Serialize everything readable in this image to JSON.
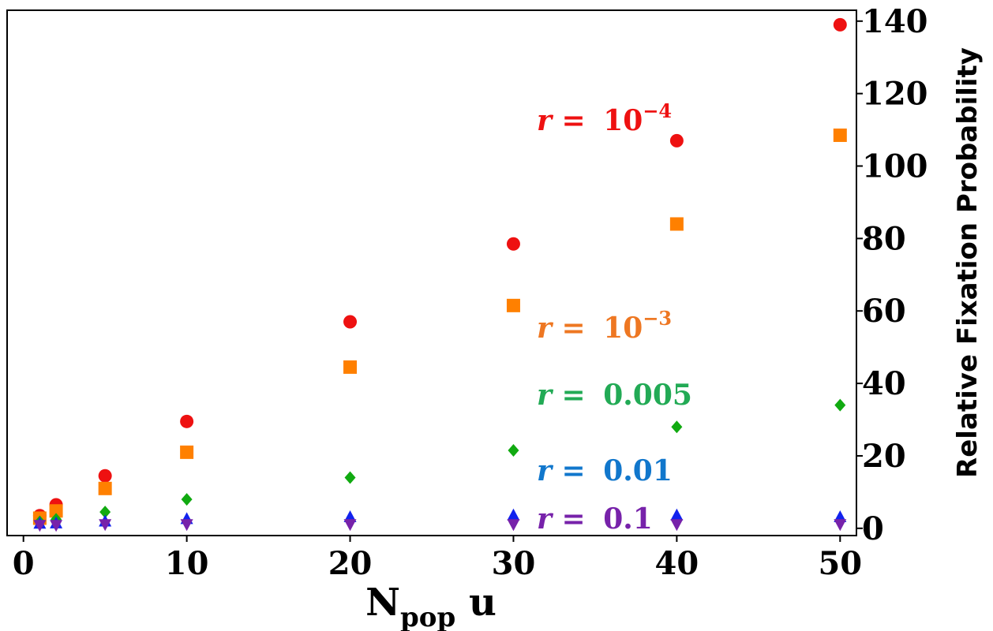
{
  "chart_data": {
    "type": "scatter",
    "xlabel": "N",
    "xlabel_sub": "pop",
    "xlabel_suffix": " u",
    "ylabel": "Relative Fixation Probability",
    "yaxis_side": "right",
    "xlim": [
      -1,
      51
    ],
    "ylim": [
      -2,
      143
    ],
    "xticks": [
      0,
      10,
      20,
      30,
      40,
      50
    ],
    "yticks": [
      0,
      20,
      40,
      60,
      80,
      100,
      120,
      140
    ],
    "grid": false,
    "legend": "inline labels",
    "series": [
      {
        "marker": "circle",
        "color": "#ee1111",
        "label": {
          "var": "r",
          "eq": " = ",
          "base": "10",
          "exp": "−4"
        },
        "x": [
          1,
          2,
          5,
          10,
          20,
          30,
          40,
          50
        ],
        "y": [
          3.5,
          6.5,
          14.5,
          29.5,
          57,
          78.5,
          107,
          139
        ]
      },
      {
        "marker": "square",
        "color": "#ff8000",
        "label": {
          "var": "r",
          "eq": " = ",
          "base": "10",
          "exp": "−3"
        },
        "x": [
          1,
          2,
          5,
          10,
          20,
          30,
          40,
          50
        ],
        "y": [
          2.8,
          4.8,
          11,
          21,
          44.5,
          61.5,
          84,
          108.5
        ]
      },
      {
        "marker": "diamond",
        "color": "#11aa11",
        "label": {
          "var": "r",
          "eq": " = ",
          "base": "0.005",
          "exp": ""
        },
        "x": [
          1,
          2,
          5,
          10,
          20,
          30,
          40,
          50
        ],
        "y": [
          1.8,
          2.5,
          4.5,
          8,
          14,
          21.5,
          28,
          34
        ]
      },
      {
        "marker": "triangle-up",
        "color": "#1122ee",
        "label": {
          "var": "r",
          "eq": " = ",
          "base": "0.01",
          "exp": ""
        },
        "x": [
          1,
          2,
          5,
          10,
          20,
          30,
          40,
          50
        ],
        "y": [
          1.2,
          1.3,
          1.8,
          2.5,
          3,
          3.5,
          3.5,
          3
        ]
      },
      {
        "marker": "triangle-down",
        "color": "#7722aa",
        "label": {
          "var": "r",
          "eq": " = ",
          "base": "0.1",
          "exp": ""
        },
        "x": [
          1,
          2,
          5,
          10,
          20,
          30,
          40,
          50
        ],
        "y": [
          1,
          1,
          1.2,
          1.2,
          1.2,
          1.2,
          1.2,
          1.2
        ]
      }
    ],
    "label_colors": [
      "#ee1111",
      "#ee7722",
      "#22aa55",
      "#1177cc",
      "#7722aa"
    ]
  }
}
